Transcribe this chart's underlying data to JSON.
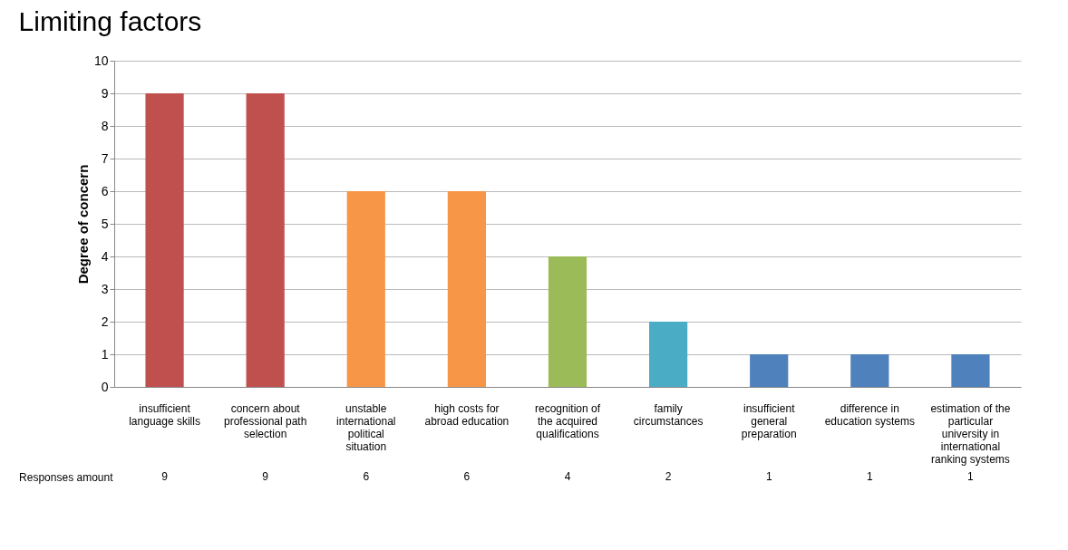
{
  "chart_data": {
    "type": "bar",
    "title": "Limiting factors",
    "ylabel": "Degree of concern",
    "categories": [
      "insufficient language skills",
      "concern about professional path selection",
      "unstable international political situation",
      "high costs for abroad education",
      "recognition of the acquired qualifications",
      "family circumstances",
      "insufficient general preparation",
      "difference in education systems",
      "estimation of the particular university in international ranking systems"
    ],
    "series": [
      {
        "name": "Responses amount",
        "colors": [
          "#c0504d",
          "#c0504d",
          "#f79646",
          "#f79646",
          "#9bbb59",
          "#4bacc6",
          "#4f81bd",
          "#4f81bd",
          "#4f81bd"
        ],
        "values": [
          9,
          9,
          6,
          6,
          4,
          2,
          1,
          1,
          1
        ]
      }
    ],
    "ylim": [
      0,
      10
    ],
    "yticks": [
      0,
      1,
      2,
      3,
      4,
      5,
      6,
      7,
      8,
      9,
      10
    ],
    "grid": "y",
    "data_labels": true,
    "legend": "bottom left"
  }
}
